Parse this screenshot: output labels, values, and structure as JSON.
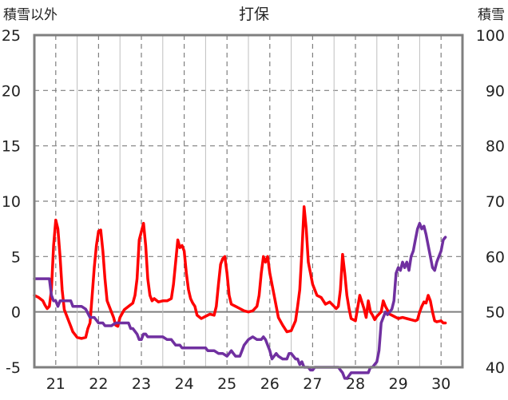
{
  "chart_data": {
    "type": "line",
    "title": "打保",
    "y_left_label": "積雪以外",
    "y_right_label": "積雪",
    "x_tick_labels": [
      "21",
      "22",
      "23",
      "24",
      "25",
      "26",
      "27",
      "28",
      "29",
      "30"
    ],
    "y_left_ticks": [
      "25",
      "20",
      "15",
      "10",
      "5",
      "0",
      "-5"
    ],
    "y_right_ticks": [
      "100",
      "90",
      "80",
      "70",
      "60",
      "50",
      "40"
    ],
    "y_left_range": [
      -5,
      25
    ],
    "y_right_range": [
      40,
      100
    ],
    "x_range": [
      20.5,
      30.5
    ],
    "grid": true,
    "series": [
      {
        "axis": "left",
        "color": "#ff0000",
        "points": [
          [
            20.5,
            1.5
          ],
          [
            20.6,
            1.3
          ],
          [
            20.7,
            1.0
          ],
          [
            20.75,
            0.6
          ],
          [
            20.8,
            0.3
          ],
          [
            20.85,
            0.5
          ],
          [
            20.9,
            2.0
          ],
          [
            20.95,
            6.0
          ],
          [
            21.0,
            8.3
          ],
          [
            21.05,
            7.5
          ],
          [
            21.1,
            5.0
          ],
          [
            21.15,
            2.0
          ],
          [
            21.2,
            0.2
          ],
          [
            21.3,
            -0.8
          ],
          [
            21.35,
            -1.3
          ],
          [
            21.4,
            -1.8
          ],
          [
            21.5,
            -2.3
          ],
          [
            21.6,
            -2.4
          ],
          [
            21.7,
            -2.3
          ],
          [
            21.75,
            -1.5
          ],
          [
            21.8,
            -1.0
          ],
          [
            21.85,
            1.5
          ],
          [
            21.9,
            4.0
          ],
          [
            21.95,
            6.0
          ],
          [
            22.0,
            7.3
          ],
          [
            22.05,
            7.4
          ],
          [
            22.1,
            5.5
          ],
          [
            22.15,
            3.0
          ],
          [
            22.2,
            1.0
          ],
          [
            22.3,
            0.0
          ],
          [
            22.35,
            -0.5
          ],
          [
            22.4,
            -1.2
          ],
          [
            22.45,
            -1.3
          ],
          [
            22.5,
            -0.5
          ],
          [
            22.6,
            0.2
          ],
          [
            22.7,
            0.5
          ],
          [
            22.8,
            0.8
          ],
          [
            22.85,
            1.5
          ],
          [
            22.9,
            3.0
          ],
          [
            22.95,
            6.5
          ],
          [
            23.05,
            8.0
          ],
          [
            23.1,
            6.0
          ],
          [
            23.15,
            3.0
          ],
          [
            23.2,
            1.5
          ],
          [
            23.25,
            1.0
          ],
          [
            23.3,
            1.2
          ],
          [
            23.4,
            0.9
          ],
          [
            23.5,
            1.0
          ],
          [
            23.6,
            1.0
          ],
          [
            23.7,
            1.2
          ],
          [
            23.75,
            2.5
          ],
          [
            23.8,
            4.5
          ],
          [
            23.85,
            6.5
          ],
          [
            23.9,
            5.8
          ],
          [
            23.95,
            6.0
          ],
          [
            24.0,
            5.5
          ],
          [
            24.05,
            3.5
          ],
          [
            24.1,
            2.0
          ],
          [
            24.15,
            1.2
          ],
          [
            24.2,
            0.8
          ],
          [
            24.25,
            0.5
          ],
          [
            24.3,
            -0.3
          ],
          [
            24.4,
            -0.6
          ],
          [
            24.5,
            -0.4
          ],
          [
            24.6,
            -0.2
          ],
          [
            24.7,
            -0.3
          ],
          [
            24.75,
            0.5
          ],
          [
            24.8,
            2.5
          ],
          [
            24.85,
            4.3
          ],
          [
            24.9,
            4.8
          ],
          [
            24.95,
            5.0
          ],
          [
            25.0,
            3.5
          ],
          [
            25.05,
            1.5
          ],
          [
            25.1,
            0.7
          ],
          [
            25.2,
            0.5
          ],
          [
            25.3,
            0.3
          ],
          [
            25.4,
            0.1
          ],
          [
            25.5,
            0.0
          ],
          [
            25.6,
            0.1
          ],
          [
            25.7,
            0.5
          ],
          [
            25.75,
            1.5
          ],
          [
            25.8,
            3.5
          ],
          [
            25.85,
            5.0
          ],
          [
            25.9,
            4.5
          ],
          [
            25.95,
            5.0
          ],
          [
            26.0,
            3.5
          ],
          [
            26.1,
            1.5
          ],
          [
            26.2,
            -0.5
          ],
          [
            26.3,
            -1.2
          ],
          [
            26.4,
            -1.8
          ],
          [
            26.5,
            -1.7
          ],
          [
            26.6,
            -0.8
          ],
          [
            26.65,
            0.5
          ],
          [
            26.7,
            2.0
          ],
          [
            26.75,
            5.5
          ],
          [
            26.8,
            9.5
          ],
          [
            26.85,
            7.5
          ],
          [
            26.9,
            4.5
          ],
          [
            26.95,
            3.5
          ],
          [
            27.0,
            2.5
          ],
          [
            27.1,
            1.5
          ],
          [
            27.2,
            1.3
          ],
          [
            27.3,
            0.7
          ],
          [
            27.4,
            0.9
          ],
          [
            27.5,
            0.5
          ],
          [
            27.55,
            0.3
          ],
          [
            27.6,
            0.5
          ],
          [
            27.65,
            2.0
          ],
          [
            27.7,
            5.2
          ],
          [
            27.75,
            3.5
          ],
          [
            27.8,
            1.5
          ],
          [
            27.85,
            0.3
          ],
          [
            27.9,
            -0.6
          ],
          [
            28.0,
            -0.8
          ],
          [
            28.1,
            1.5
          ],
          [
            28.2,
            0.3
          ],
          [
            28.25,
            -0.5
          ],
          [
            28.3,
            1.0
          ],
          [
            28.35,
            0.0
          ],
          [
            28.4,
            -0.3
          ],
          [
            28.45,
            -0.7
          ],
          [
            28.5,
            -0.4
          ],
          [
            28.6,
            0.0
          ],
          [
            28.65,
            1.0
          ],
          [
            28.7,
            0.5
          ],
          [
            28.8,
            -0.2
          ],
          [
            28.9,
            -0.4
          ],
          [
            29.0,
            -0.6
          ],
          [
            29.1,
            -0.5
          ],
          [
            29.2,
            -0.6
          ],
          [
            29.3,
            -0.7
          ],
          [
            29.4,
            -0.8
          ],
          [
            29.45,
            -0.7
          ],
          [
            29.5,
            0.0
          ],
          [
            29.55,
            0.5
          ],
          [
            29.6,
            0.9
          ],
          [
            29.65,
            0.8
          ],
          [
            29.7,
            1.5
          ],
          [
            29.75,
            1.0
          ],
          [
            29.8,
            0.0
          ],
          [
            29.85,
            -0.8
          ],
          [
            29.9,
            -0.9
          ],
          [
            30.0,
            -0.8
          ],
          [
            30.05,
            -1.0
          ],
          [
            30.1,
            -1.0
          ]
        ]
      },
      {
        "axis": "right",
        "color": "#7030a0",
        "points": [
          [
            20.5,
            56
          ],
          [
            20.85,
            56
          ],
          [
            20.9,
            53
          ],
          [
            20.95,
            52
          ],
          [
            21.0,
            52
          ],
          [
            21.05,
            51
          ],
          [
            21.1,
            52
          ],
          [
            21.35,
            52
          ],
          [
            21.4,
            51
          ],
          [
            21.6,
            51
          ],
          [
            21.7,
            50.5
          ],
          [
            21.8,
            49
          ],
          [
            21.9,
            49
          ],
          [
            22.0,
            48
          ],
          [
            22.1,
            48
          ],
          [
            22.15,
            47.5
          ],
          [
            22.3,
            47.5
          ],
          [
            22.4,
            48
          ],
          [
            22.7,
            48
          ],
          [
            22.75,
            47
          ],
          [
            22.8,
            47
          ],
          [
            22.9,
            46
          ],
          [
            22.95,
            45
          ],
          [
            23.0,
            45
          ],
          [
            23.05,
            46
          ],
          [
            23.1,
            46
          ],
          [
            23.15,
            45.5
          ],
          [
            23.5,
            45.5
          ],
          [
            23.6,
            45
          ],
          [
            23.7,
            45
          ],
          [
            23.8,
            44
          ],
          [
            23.9,
            44
          ],
          [
            23.95,
            43.5
          ],
          [
            24.5,
            43.5
          ],
          [
            24.55,
            43
          ],
          [
            24.7,
            43
          ],
          [
            24.8,
            42.5
          ],
          [
            24.9,
            42.5
          ],
          [
            25.0,
            42
          ],
          [
            25.05,
            42.5
          ],
          [
            25.1,
            43
          ],
          [
            25.15,
            42.5
          ],
          [
            25.2,
            42
          ],
          [
            25.3,
            42
          ],
          [
            25.35,
            43
          ],
          [
            25.4,
            44
          ],
          [
            25.5,
            45
          ],
          [
            25.6,
            45.5
          ],
          [
            25.7,
            45
          ],
          [
            25.8,
            45
          ],
          [
            25.85,
            45.5
          ],
          [
            25.9,
            45
          ],
          [
            25.95,
            44
          ],
          [
            26.0,
            43
          ],
          [
            26.05,
            41.5
          ],
          [
            26.1,
            42
          ],
          [
            26.15,
            42.5
          ],
          [
            26.2,
            42
          ],
          [
            26.3,
            41.5
          ],
          [
            26.4,
            41.5
          ],
          [
            26.45,
            42.5
          ],
          [
            26.5,
            42.5
          ],
          [
            26.55,
            42
          ],
          [
            26.6,
            41.5
          ],
          [
            26.65,
            41.5
          ],
          [
            26.7,
            40.5
          ],
          [
            26.75,
            41
          ],
          [
            26.8,
            40
          ],
          [
            26.9,
            40
          ],
          [
            26.95,
            39.5
          ],
          [
            27.0,
            39.5
          ],
          [
            27.05,
            40
          ],
          [
            27.1,
            40
          ],
          [
            27.6,
            40
          ],
          [
            27.65,
            39.5
          ],
          [
            27.7,
            39
          ],
          [
            27.75,
            38
          ],
          [
            27.8,
            38
          ],
          [
            27.85,
            38.5
          ],
          [
            27.9,
            39
          ],
          [
            28.3,
            39
          ],
          [
            28.35,
            40
          ],
          [
            28.4,
            40
          ],
          [
            28.45,
            40.5
          ],
          [
            28.5,
            41
          ],
          [
            28.55,
            43
          ],
          [
            28.6,
            48
          ],
          [
            28.7,
            50
          ],
          [
            28.75,
            49.5
          ],
          [
            28.8,
            50
          ],
          [
            28.85,
            50.5
          ],
          [
            28.9,
            52
          ],
          [
            28.95,
            57
          ],
          [
            29.0,
            58
          ],
          [
            29.05,
            57.5
          ],
          [
            29.1,
            59
          ],
          [
            29.15,
            58
          ],
          [
            29.2,
            59
          ],
          [
            29.25,
            57.5
          ],
          [
            29.3,
            60
          ],
          [
            29.35,
            61
          ],
          [
            29.4,
            63
          ],
          [
            29.45,
            65
          ],
          [
            29.5,
            66
          ],
          [
            29.55,
            65
          ],
          [
            29.6,
            65.5
          ],
          [
            29.65,
            64
          ],
          [
            29.7,
            62
          ],
          [
            29.75,
            60
          ],
          [
            29.8,
            58
          ],
          [
            29.85,
            57.5
          ],
          [
            29.9,
            59
          ],
          [
            29.95,
            60
          ],
          [
            30.0,
            61
          ],
          [
            30.05,
            63
          ],
          [
            30.1,
            63.5
          ]
        ]
      }
    ]
  }
}
